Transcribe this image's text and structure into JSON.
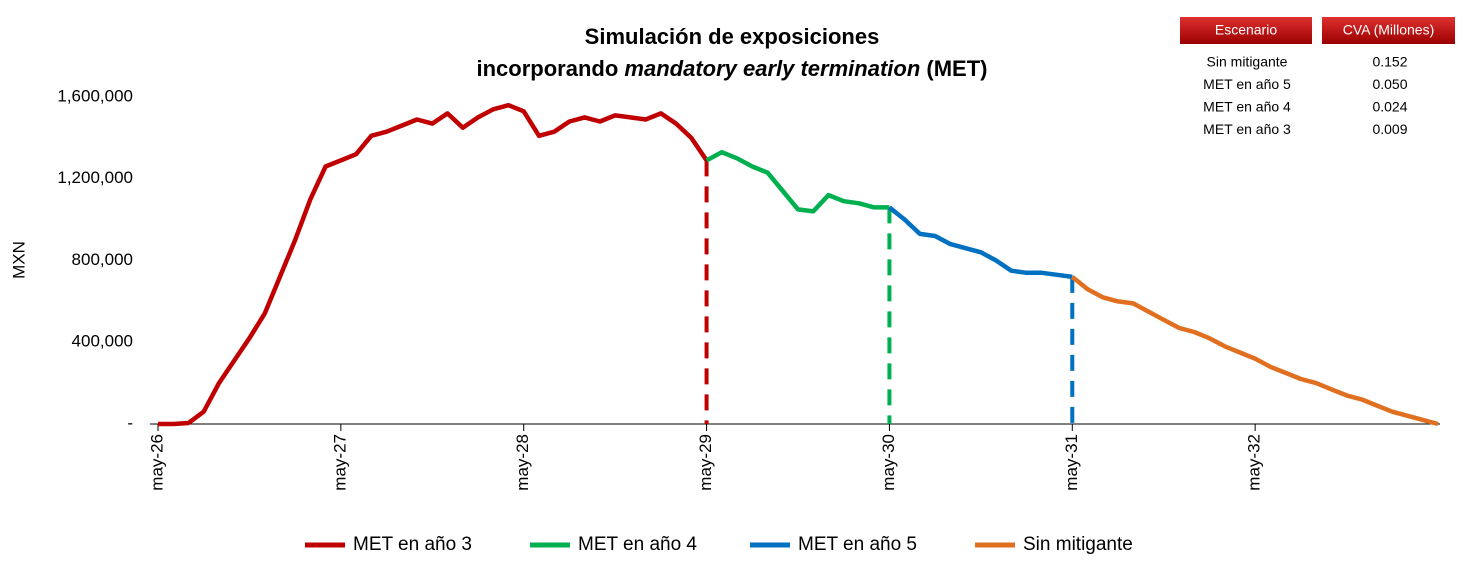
{
  "chart_data": {
    "type": "line",
    "title": "Simulación de exposiciones",
    "title_line2": [
      "incorporando",
      "mandatory early termination",
      "(MET)"
    ],
    "y_label": "MXN",
    "categories": [
      "may-26",
      null,
      null,
      null,
      null,
      null,
      null,
      null,
      null,
      null,
      null,
      null,
      "may-27",
      null,
      null,
      null,
      null,
      null,
      null,
      null,
      null,
      null,
      null,
      null,
      "may-28",
      null,
      null,
      null,
      null,
      null,
      null,
      null,
      null,
      null,
      null,
      null,
      "may-29",
      null,
      null,
      null,
      null,
      null,
      null,
      null,
      null,
      null,
      null,
      null,
      "may-30",
      null,
      null,
      null,
      null,
      null,
      null,
      null,
      null,
      null,
      null,
      null,
      "may-31",
      null,
      null,
      null,
      null,
      null,
      null,
      null,
      null,
      null,
      null,
      null,
      "may-32",
      null,
      null,
      null,
      null,
      null,
      null,
      null,
      null,
      null,
      null,
      null,
      null
    ],
    "ylim": [
      0,
      1600000
    ],
    "yticks": [
      {
        "value": 0,
        "label": "-"
      },
      {
        "value": 400000,
        "label": "400,000"
      },
      {
        "value": 800000,
        "label": "800,000"
      },
      {
        "value": 1200000,
        "label": "1,200,000"
      },
      {
        "value": 1600000,
        "label": "1,600,000"
      }
    ],
    "series": [
      {
        "name": "MET en año 3",
        "color": "#c00000",
        "values": [
          0,
          0,
          5000,
          60000,
          200000,
          310000,
          420000,
          540000,
          720000,
          900000,
          1100000,
          1260000,
          1290000,
          1320000,
          1410000,
          1430000,
          1460000,
          1490000,
          1470000,
          1520000,
          1450000,
          1500000,
          1540000,
          1560000,
          1530000,
          1410000,
          1430000,
          1480000,
          1500000,
          1480000,
          1510000,
          1500000,
          1490000,
          1520000,
          1470000,
          1400000,
          1290000,
          null,
          null,
          null,
          null,
          null,
          null,
          null,
          null,
          null,
          null,
          null,
          null,
          null,
          null,
          null,
          null,
          null,
          null,
          null,
          null,
          null,
          null,
          null,
          null,
          null,
          null,
          null,
          null,
          null,
          null,
          null,
          null,
          null,
          null,
          null,
          null,
          null,
          null,
          null,
          null,
          null,
          null,
          null,
          null,
          null,
          null,
          null,
          null
        ]
      },
      {
        "name": "MET en año 4",
        "color": "#00b050",
        "values": [
          null,
          null,
          null,
          null,
          null,
          null,
          null,
          null,
          null,
          null,
          null,
          null,
          null,
          null,
          null,
          null,
          null,
          null,
          null,
          null,
          null,
          null,
          null,
          null,
          null,
          null,
          null,
          null,
          null,
          null,
          null,
          null,
          null,
          null,
          null,
          null,
          1290000,
          1330000,
          1300000,
          1260000,
          1230000,
          1140000,
          1050000,
          1040000,
          1120000,
          1090000,
          1080000,
          1060000,
          1060000,
          null,
          null,
          null,
          null,
          null,
          null,
          null,
          null,
          null,
          null,
          null,
          null,
          null,
          null,
          null,
          null,
          null,
          null,
          null,
          null,
          null,
          null,
          null,
          null,
          null,
          null,
          null,
          null,
          null,
          null,
          null,
          null,
          null,
          null,
          null,
          null
        ]
      },
      {
        "name": "MET en año 5",
        "color": "#0070c0",
        "values": [
          null,
          null,
          null,
          null,
          null,
          null,
          null,
          null,
          null,
          null,
          null,
          null,
          null,
          null,
          null,
          null,
          null,
          null,
          null,
          null,
          null,
          null,
          null,
          null,
          null,
          null,
          null,
          null,
          null,
          null,
          null,
          null,
          null,
          null,
          null,
          null,
          null,
          null,
          null,
          null,
          null,
          null,
          null,
          null,
          null,
          null,
          null,
          null,
          1060000,
          1000000,
          930000,
          920000,
          880000,
          860000,
          840000,
          800000,
          750000,
          740000,
          740000,
          730000,
          720000,
          null,
          null,
          null,
          null,
          null,
          null,
          null,
          null,
          null,
          null,
          null,
          null,
          null,
          null,
          null,
          null,
          null,
          null,
          null,
          null,
          null,
          null,
          null,
          null
        ]
      },
      {
        "name": "Sin mitigante",
        "color": "#e07020",
        "values": [
          null,
          null,
          null,
          null,
          null,
          null,
          null,
          null,
          null,
          null,
          null,
          null,
          null,
          null,
          null,
          null,
          null,
          null,
          null,
          null,
          null,
          null,
          null,
          null,
          null,
          null,
          null,
          null,
          null,
          null,
          null,
          null,
          null,
          null,
          null,
          null,
          null,
          null,
          null,
          null,
          null,
          null,
          null,
          null,
          null,
          null,
          null,
          null,
          null,
          null,
          null,
          null,
          null,
          null,
          null,
          null,
          null,
          null,
          null,
          null,
          720000,
          660000,
          620000,
          600000,
          590000,
          550000,
          510000,
          470000,
          450000,
          420000,
          380000,
          350000,
          320000,
          280000,
          250000,
          220000,
          200000,
          170000,
          140000,
          120000,
          90000,
          60000,
          40000,
          20000,
          0
        ]
      }
    ],
    "legend": "bottom"
  },
  "table": {
    "header": [
      "Escenario",
      "CVA (Millones)"
    ],
    "rows": [
      [
        "Sin mitigante",
        "0.152"
      ],
      [
        "MET en año 5",
        "0.050"
      ],
      [
        "MET en año 4",
        "0.024"
      ],
      [
        "MET en año 3",
        "0.009"
      ]
    ]
  }
}
